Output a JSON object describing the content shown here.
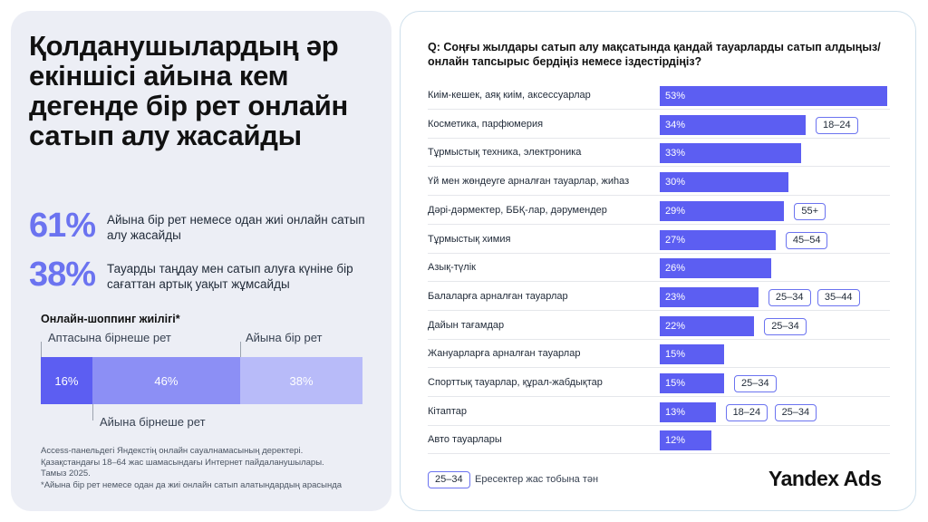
{
  "left": {
    "headline": "Қолданушылардың әр екіншісі айына кем дегенде бір рет онлайн сатып алу жасайды",
    "stats": [
      {
        "value": "61%",
        "text": "Айына бір рет немесе одан жиі онлайн сатып алу жасайды"
      },
      {
        "value": "38%",
        "text": "Тауарды таңдау мен сатып алуға күніне бір сағаттан артық уақыт жұмсайды"
      }
    ],
    "frequency": {
      "title": "Онлайн-шоппинг жиілігі*",
      "segments": [
        {
          "value": 16,
          "label": "16%",
          "name": "Аптасына бірнеше рет",
          "color": "#5c5ef2"
        },
        {
          "value": 46,
          "label": "46%",
          "name": "Айына бірнеше рет",
          "color": "#8c8ff5"
        },
        {
          "value": 38,
          "label": "38%",
          "name": "Айына бір рет",
          "color": "#b8bbf9"
        }
      ]
    },
    "footnote": [
      "Access-панельдегі Яндекстің онлайн сауалнамасының деректері.",
      "Қазақстандағы 18–64 жас шамасындағы Интернет пайдаланушылары.",
      "Тамыз 2025.",
      "*Айына бір рет немесе одан да жиі онлайн сатып алатындардың арасында"
    ]
  },
  "right": {
    "question": "Q: Соңғы жылдары сатып алу мақсатында қандай тауарларды сатып алдыңыз/ онлайн тапсырыс бердіңіз немесе іздестірдіңіз?",
    "legend_badge": "25–34",
    "legend_text": "Ересектер жас тобына тән",
    "brand": "Yandex Ads"
  },
  "colors": {
    "accent": "#5c5ef2",
    "stat": "#6b73f0",
    "panel": "#eceef5"
  },
  "chart_data": {
    "type": "bar",
    "orientation": "horizontal",
    "categories": [
      "Киім-кешек, аяқ киім, аксессуарлар",
      "Косметика, парфюмерия",
      "Тұрмыстық техника, электроника",
      "Үй мен жөндеуге арналған тауарлар, жиһаз",
      "Дәрі-дәрмектер, ББҚ-лар, дәрумендер",
      "Тұрмыстық химия",
      "Азық-түлік",
      "Балаларға арналған тауарлар",
      "Дайын тағамдар",
      "Жануарларға арналған тауарлар",
      "Спорттық тауарлар, құрал-жабдықтар",
      "Кітаптар",
      "Авто тауарлары"
    ],
    "values": [
      53,
      34,
      33,
      30,
      29,
      27,
      26,
      23,
      22,
      15,
      15,
      13,
      12
    ],
    "labels": [
      "53%",
      "34%",
      "33%",
      "30%",
      "29%",
      "27%",
      "26%",
      "23%",
      "22%",
      "15%",
      "15%",
      "13%",
      "12%"
    ],
    "age_groups": [
      [],
      [
        "18–24"
      ],
      [],
      [],
      [
        "55+"
      ],
      [
        "45–54"
      ],
      [],
      [
        "25–34",
        "35–44"
      ],
      [
        "25–34"
      ],
      [],
      [
        "25–34"
      ],
      [
        "18–24",
        "25–34"
      ],
      []
    ],
    "xlim": [
      0,
      53
    ]
  }
}
